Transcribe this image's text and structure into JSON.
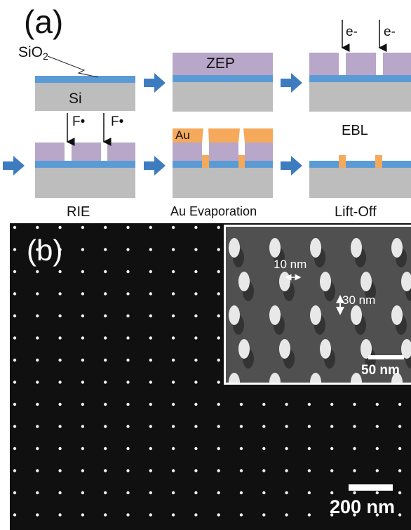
{
  "panel_a": {
    "label": "(a)",
    "layers": {
      "sio2": "SiO",
      "sio2_sub": "2",
      "si": "Si",
      "zep": "ZEP",
      "au": "Au"
    },
    "beam": {
      "electron": "e-",
      "fluorine": "F•"
    },
    "steps": {
      "ebl": "EBL",
      "rie": "RIE",
      "au_evaporation": "Au Evaporation",
      "lift_off": "Lift-Off"
    },
    "colors": {
      "si": "#bdbdbd",
      "sio2": "#5b9bd5",
      "zep": "#b8a7c9",
      "au": "#f5a95a",
      "arrow": "#3e7cc0"
    }
  },
  "panel_b": {
    "label": "(b)",
    "scale_bar": "200 nm",
    "inset": {
      "dot_width": "10 nm",
      "dot_height": "30 nm",
      "scale_bar": "50 nm"
    }
  }
}
